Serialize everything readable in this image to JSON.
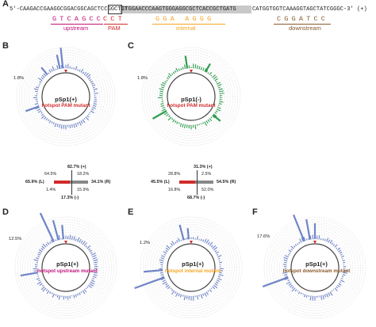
{
  "colors": {
    "magenta": "#c0127a",
    "red": "#d12a2a",
    "orange": "#f5a623",
    "brown": "#8a5a2b",
    "blue": "#6f84c8",
    "green": "#2e9e4e",
    "gray_bar": "#888888",
    "ring": "#d0d0d0"
  },
  "panel_a": {
    "letter": "A",
    "sequence_prefix": "5'-CAAGACCGAAGGCGGACGGCAGCTCCGGCTGT",
    "sequence_boxed": "CTGGAACCCAAGTGGGAGGCGCTCACCGCTGATG",
    "sequence_suffix": "CATGGTGGTCAAAGGTAGCTATCGGGC-3' (+)",
    "motifs": [
      {
        "letters": "GTCAGCC",
        "label": "upstream",
        "color": "#c0127a"
      },
      {
        "letters": "CCT",
        "label": "PAM",
        "color": "#d12a2a"
      },
      {
        "letters": "GGA AGGG",
        "label": "internal",
        "color": "#f5a623"
      },
      {
        "letters": "CGGATCC",
        "label": "downstream",
        "color": "#8a5a2b"
      }
    ]
  },
  "panels": [
    {
      "id": "B",
      "title": "pSp1(+)",
      "subtitle": "hotspot PAM mutant",
      "sub_color": "#d12a2a",
      "peak_pct": "1.8%",
      "bar_color": "#6f84c8"
    },
    {
      "id": "C",
      "title": "pSp1(-)",
      "subtitle": "hotspot PAM mutant",
      "sub_color": "#d12a2a",
      "peak_pct": "1.8%",
      "bar_color": "#2e9e4e"
    },
    {
      "id": "D",
      "title": "pSp1(+)",
      "subtitle": "hotspot upstream mutant",
      "sub_color": "#c0127a",
      "peak_pct": "12.5%",
      "bar_color": "#6f84c8"
    },
    {
      "id": "E",
      "title": "pSp1(+)",
      "subtitle": "hotspot internal mutant",
      "sub_color": "#f5a623",
      "peak_pct": "1.2%",
      "bar_color": "#6f84c8"
    },
    {
      "id": "F",
      "title": "pSp1(+)",
      "subtitle": "hotspot downstream mutant",
      "sub_color": "#8a5a2b",
      "peak_pct": "17.6%",
      "bar_color": "#6f84c8"
    }
  ],
  "summary_b": {
    "top": "82.7% (+)",
    "upper_left": "64.5%",
    "upper_right": "18.2%",
    "left": "65.9% (L)",
    "right": "34.1% (R)",
    "lower_left": "1.4%",
    "lower_right": "15.9%",
    "bottom": "17.3% (-)"
  },
  "summary_c": {
    "top": "31.3% (+)",
    "upper_left": "28.8%",
    "upper_right": "2.5%",
    "left": "45.5% (L)",
    "right": "54.5% (R)",
    "lower_left": "16.8%",
    "lower_right": "52.0%",
    "bottom": "68.7% (-)"
  }
}
